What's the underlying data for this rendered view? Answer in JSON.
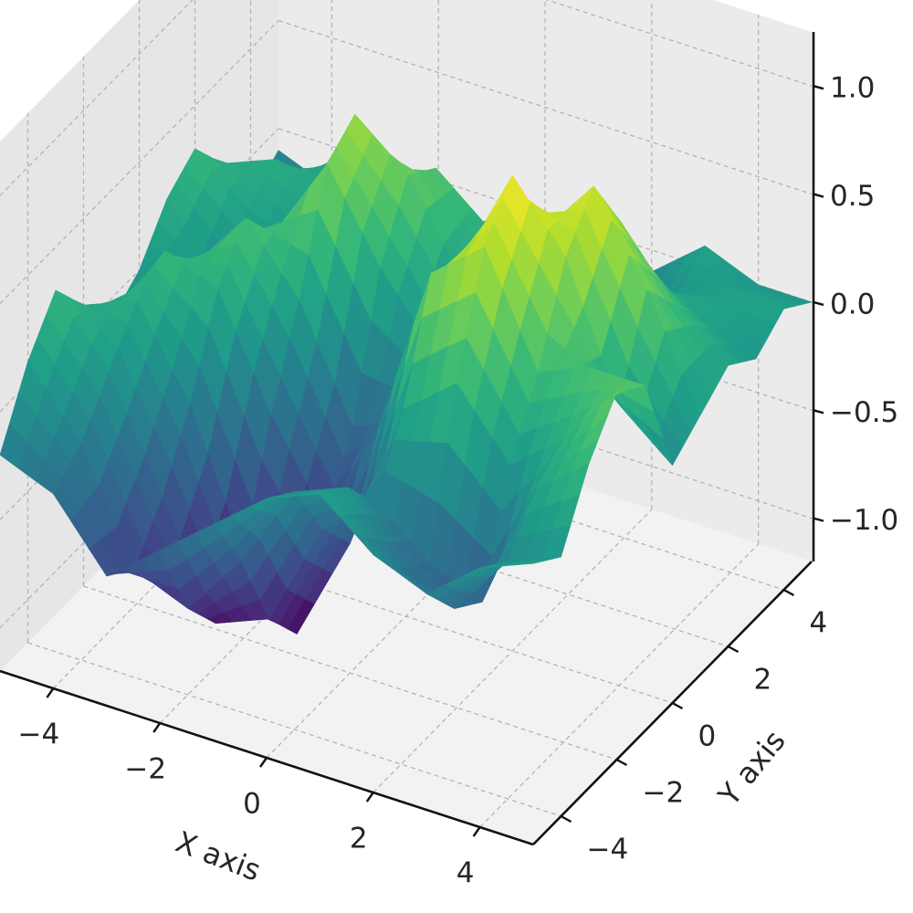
{
  "chart_data": {
    "type": "surface3d",
    "title": "",
    "xlabel": "X axis",
    "ylabel": "Y axis",
    "zlabel": "",
    "xlim": [
      -5,
      5
    ],
    "ylim": [
      -5,
      5
    ],
    "zlim": [
      -1.2,
      1.25
    ],
    "x_ticks": [
      -4,
      -2,
      0,
      2,
      4
    ],
    "y_ticks": [
      -4,
      -2,
      0,
      2,
      4
    ],
    "z_ticks": [
      -1.0,
      -0.5,
      0.0,
      0.5,
      1.0
    ],
    "x_tick_labels": [
      "−4",
      "−2",
      "0",
      "2",
      "4"
    ],
    "y_tick_labels": [
      "−4",
      "−2",
      "0",
      "2",
      "4"
    ],
    "z_tick_labels": [
      "−1.0",
      "−0.5",
      "0.0",
      "0.5",
      "1.0"
    ],
    "colormap": "viridis",
    "grid": true,
    "pane_color": "#f2f2f2",
    "grid_color": "#b0b0b0",
    "surface": {
      "x": [
        -5,
        -4,
        -3,
        -2,
        -1,
        0,
        1,
        2,
        3,
        4,
        5
      ],
      "y": [
        -5,
        -4,
        -3,
        -2,
        -1,
        0,
        1,
        2,
        3,
        4,
        5
      ],
      "z": [
        [
          -0.2,
          -0.3,
          -0.6,
          -0.4,
          -0.2,
          0.0,
          0.1,
          -0.1,
          -0.2,
          0.0,
          0.1
        ],
        [
          0.1,
          -0.2,
          -0.7,
          -0.8,
          -0.5,
          -0.1,
          0.0,
          -0.3,
          -0.4,
          -0.1,
          0.0
        ],
        [
          0.3,
          0.0,
          -0.5,
          -1.0,
          -0.9,
          -0.4,
          -0.2,
          -0.4,
          -0.5,
          0.1,
          0.3
        ],
        [
          0.1,
          0.2,
          -0.2,
          -0.8,
          -1.1,
          -0.6,
          0.1,
          0.3,
          0.0,
          0.2,
          0.5
        ],
        [
          -0.1,
          0.3,
          0.2,
          -0.3,
          -0.7,
          -0.2,
          0.6,
          0.8,
          0.3,
          0.4,
          0.4
        ],
        [
          0.0,
          0.1,
          0.4,
          0.1,
          -0.4,
          -0.3,
          0.5,
          1.0,
          0.7,
          0.1,
          -0.1
        ],
        [
          0.2,
          -0.1,
          0.2,
          0.6,
          0.2,
          -0.1,
          0.3,
          0.6,
          0.9,
          0.5,
          0.0
        ],
        [
          0.3,
          0.1,
          0.0,
          0.7,
          0.5,
          0.1,
          0.0,
          0.4,
          0.6,
          0.3,
          0.1
        ],
        [
          0.1,
          0.2,
          0.1,
          0.2,
          0.4,
          0.2,
          -0.3,
          0.0,
          0.2,
          0.1,
          0.0
        ],
        [
          -0.2,
          0.0,
          0.2,
          -0.1,
          0.0,
          -0.1,
          -0.5,
          -0.3,
          0.0,
          0.1,
          0.1
        ],
        [
          -0.1,
          -0.2,
          0.0,
          -0.3,
          -0.1,
          0.0,
          -0.2,
          -0.1,
          0.1,
          0.0,
          0.0
        ]
      ]
    }
  }
}
